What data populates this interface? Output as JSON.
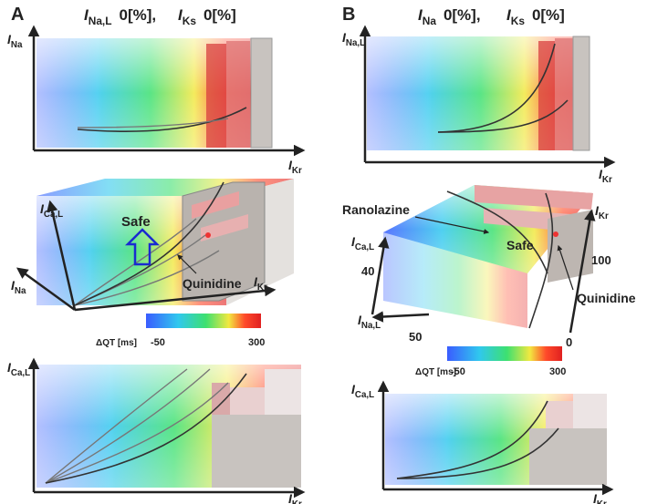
{
  "panels": [
    {
      "label": "A",
      "title": [
        {
          "symbol": "I",
          "subscript": "Na,L",
          "text": "0[%],"
        },
        {
          "symbol": "I",
          "subscript": "Ks",
          "text": "0[%]"
        }
      ],
      "top_plot": {
        "y_axis": {
          "symbol": "I",
          "subscript": "Na"
        },
        "x_axis": {
          "symbol": "I",
          "subscript": "Kr"
        }
      },
      "middle_plot": {
        "axes": [
          {
            "symbol": "I",
            "subscript": "Ca,L"
          },
          {
            "symbol": "I",
            "subscript": "Na"
          },
          {
            "symbol": "I",
            "subscript": "Kr"
          }
        ],
        "annotations": [
          "Safe",
          "Quinidine"
        ]
      },
      "colorbar": {
        "label": "ΔQT [ms]",
        "min": -50,
        "max": 300
      },
      "bottom_plot": {
        "y_axis": {
          "symbol": "I",
          "subscript": "Ca,L"
        },
        "x_axis": {
          "symbol": "I",
          "subscript": "Kr"
        }
      }
    },
    {
      "label": "B",
      "title": [
        {
          "symbol": "I",
          "subscript": "Na",
          "text": "0[%],"
        },
        {
          "symbol": "I",
          "subscript": "Ks",
          "text": "0[%]"
        }
      ],
      "top_plot": {
        "y_axis": {
          "symbol": "I",
          "subscript": "Na,L"
        },
        "x_axis": {
          "symbol": "I",
          "subscript": "Kr"
        }
      },
      "middle_plot": {
        "axes": [
          {
            "symbol": "I",
            "subscript": "Ca,L"
          },
          {
            "symbol": "I",
            "subscript": "Na,L"
          },
          {
            "symbol": "I",
            "subscript": "Kr"
          }
        ],
        "annotations": [
          "Ranolazine",
          "Safe",
          "Quinidine"
        ],
        "ticks": [
          40,
          50,
          100,
          0
        ]
      },
      "colorbar": {
        "label": "ΔQT [ms]",
        "min": -50,
        "max": 300
      },
      "bottom_plot": {
        "y_axis": {
          "symbol": "I",
          "subscript": "Ca,L"
        },
        "x_axis": {
          "symbol": "I",
          "subscript": "Kr"
        }
      }
    }
  ]
}
